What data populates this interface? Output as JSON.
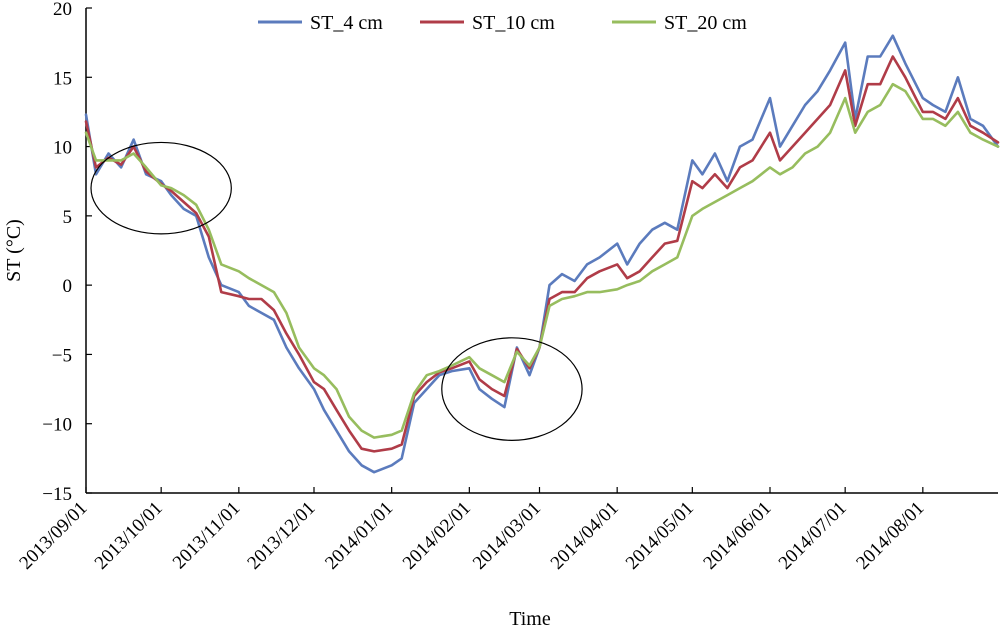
{
  "chart_data": {
    "type": "line",
    "xlabel": "Time",
    "ylabel": "ST (°C)",
    "ylim": [
      -15,
      20
    ],
    "yticks": [
      -15,
      -10,
      -5,
      0,
      5,
      10,
      15,
      20
    ],
    "x_tick_labels": [
      "2013/09/01",
      "2013/10/01",
      "2013/11/01",
      "2013/12/01",
      "2014/01/01",
      "2014/02/01",
      "2014/03/01",
      "2014/04/01",
      "2014/05/01",
      "2014/06/01",
      "2014/07/01",
      "2014/08/01"
    ],
    "xlim": [
      "2013-09-01",
      "2014-08-31"
    ],
    "grid": false,
    "legend_position": "top-center",
    "x": [
      "2013-09-01",
      "2013-09-05",
      "2013-09-10",
      "2013-09-15",
      "2013-09-20",
      "2013-09-25",
      "2013-10-01",
      "2013-10-05",
      "2013-10-10",
      "2013-10-15",
      "2013-10-20",
      "2013-10-25",
      "2013-11-01",
      "2013-11-05",
      "2013-11-10",
      "2013-11-15",
      "2013-11-20",
      "2013-11-25",
      "2013-12-01",
      "2013-12-05",
      "2013-12-10",
      "2013-12-15",
      "2013-12-20",
      "2013-12-25",
      "2014-01-01",
      "2014-01-05",
      "2014-01-10",
      "2014-01-15",
      "2014-01-20",
      "2014-01-25",
      "2014-02-01",
      "2014-02-05",
      "2014-02-10",
      "2014-02-15",
      "2014-02-20",
      "2014-02-25",
      "2014-03-01",
      "2014-03-05",
      "2014-03-10",
      "2014-03-15",
      "2014-03-20",
      "2014-03-25",
      "2014-04-01",
      "2014-04-05",
      "2014-04-10",
      "2014-04-15",
      "2014-04-20",
      "2014-04-25",
      "2014-05-01",
      "2014-05-05",
      "2014-05-10",
      "2014-05-15",
      "2014-05-20",
      "2014-05-25",
      "2014-06-01",
      "2014-06-05",
      "2014-06-10",
      "2014-06-15",
      "2014-06-20",
      "2014-06-25",
      "2014-07-01",
      "2014-07-05",
      "2014-07-10",
      "2014-07-15",
      "2014-07-20",
      "2014-07-25",
      "2014-08-01",
      "2014-08-05",
      "2014-08-10",
      "2014-08-15",
      "2014-08-20",
      "2014-08-25",
      "2014-08-31"
    ],
    "series": [
      {
        "name": "ST_4 cm",
        "color": "#5b7bbd",
        "values": [
          12.3,
          8.0,
          9.5,
          8.5,
          10.5,
          8.0,
          7.5,
          6.5,
          5.5,
          5.0,
          2.0,
          0.0,
          -0.5,
          -1.5,
          -2.0,
          -2.5,
          -4.5,
          -6.0,
          -7.5,
          -9.0,
          -10.5,
          -12.0,
          -13.0,
          -13.5,
          -13.0,
          -12.5,
          -8.5,
          -7.5,
          -6.5,
          -6.2,
          -6.0,
          -7.5,
          -8.2,
          -8.8,
          -4.5,
          -6.5,
          -4.5,
          0.0,
          0.8,
          0.3,
          1.5,
          2.0,
          3.0,
          1.5,
          3.0,
          4.0,
          4.5,
          4.0,
          9.0,
          8.0,
          9.5,
          7.5,
          10.0,
          10.5,
          13.5,
          10.0,
          11.5,
          13.0,
          14.0,
          15.5,
          17.5,
          12.0,
          16.5,
          16.5,
          18.0,
          16.0,
          13.5,
          13.0,
          12.5,
          15.0,
          12.0,
          11.5,
          10.0
        ]
      },
      {
        "name": "ST_10 cm",
        "color": "#b03c48",
        "values": [
          11.8,
          8.5,
          9.2,
          8.7,
          10.0,
          8.2,
          7.3,
          6.8,
          6.0,
          5.2,
          3.5,
          -0.5,
          -0.8,
          -1.0,
          -1.0,
          -1.8,
          -3.5,
          -5.0,
          -7.0,
          -7.5,
          -9.0,
          -10.5,
          -11.8,
          -12.0,
          -11.8,
          -11.5,
          -8.0,
          -7.0,
          -6.3,
          -6.0,
          -5.5,
          -6.8,
          -7.5,
          -8.0,
          -4.6,
          -6.0,
          -4.5,
          -1.0,
          -0.5,
          -0.5,
          0.5,
          1.0,
          1.5,
          0.5,
          1.0,
          2.0,
          3.0,
          3.2,
          7.5,
          7.0,
          8.0,
          7.0,
          8.5,
          9.0,
          11.0,
          9.0,
          10.0,
          11.0,
          12.0,
          13.0,
          15.5,
          11.5,
          14.5,
          14.5,
          16.5,
          15.0,
          12.5,
          12.5,
          12.0,
          13.5,
          11.5,
          11.0,
          10.3
        ]
      },
      {
        "name": "ST_20 cm",
        "color": "#97bd5e",
        "values": [
          11.0,
          9.0,
          9.0,
          9.0,
          9.5,
          8.5,
          7.2,
          7.0,
          6.5,
          5.8,
          4.0,
          1.5,
          1.0,
          0.5,
          0.0,
          -0.5,
          -2.0,
          -4.5,
          -6.0,
          -6.5,
          -7.5,
          -9.5,
          -10.5,
          -11.0,
          -10.8,
          -10.5,
          -7.8,
          -6.5,
          -6.2,
          -5.8,
          -5.2,
          -6.0,
          -6.5,
          -7.0,
          -4.8,
          -5.8,
          -4.5,
          -1.5,
          -1.0,
          -0.8,
          -0.5,
          -0.5,
          -0.3,
          0.0,
          0.3,
          1.0,
          1.5,
          2.0,
          5.0,
          5.5,
          6.0,
          6.5,
          7.0,
          7.5,
          8.5,
          8.0,
          8.5,
          9.5,
          10.0,
          11.0,
          13.5,
          11.0,
          12.5,
          13.0,
          14.5,
          14.0,
          12.0,
          12.0,
          11.5,
          12.5,
          11.0,
          10.5,
          10.0
        ]
      }
    ],
    "annotations": [
      {
        "shape": "ellipse",
        "center": [
          "2013-10-01",
          7.0
        ],
        "semi_axis_days": 28,
        "semi_axis_value": 3.3
      },
      {
        "shape": "ellipse",
        "center": [
          "2014-02-18",
          -7.5
        ],
        "semi_axis_days": 28,
        "semi_axis_value": 3.7
      }
    ]
  }
}
